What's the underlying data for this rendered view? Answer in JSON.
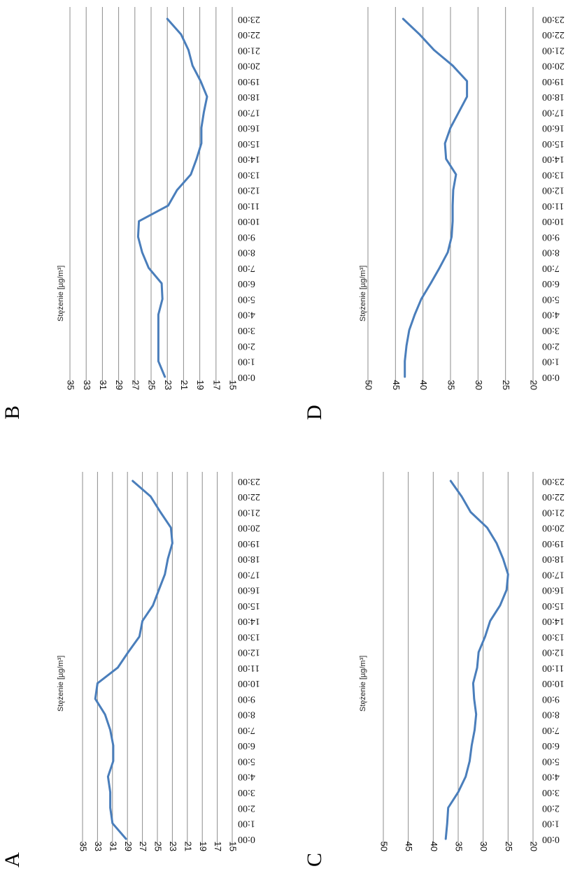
{
  "series_color": "#4a7ebb",
  "chart_data": [
    {
      "panel": "A",
      "type": "line",
      "ylabel": "Stężenie [µg/m³]",
      "ylim": [
        15,
        35
      ],
      "yticks": [
        35,
        33,
        31,
        29,
        27,
        25,
        23,
        21,
        19,
        17,
        15
      ],
      "grid": true,
      "categories": [
        "0:00",
        "1:00",
        "2:00",
        "3:00",
        "4:00",
        "5:00",
        "6:00",
        "7:00",
        "8:00",
        "9:00",
        "10:00",
        "11:00",
        "12:00",
        "13:00",
        "14:00",
        "15:00",
        "16:00",
        "17:00",
        "18:00",
        "19:00",
        "20:00",
        "21:00",
        "22:00",
        "23:00"
      ],
      "values": [
        29.2,
        31.0,
        31.3,
        31.3,
        31.6,
        30.9,
        30.9,
        31.3,
        32.0,
        33.3,
        33.0,
        30.3,
        28.9,
        27.4,
        27.0,
        25.6,
        24.8,
        24.0,
        23.6,
        23.0,
        23.2,
        24.6,
        25.9,
        28.3
      ]
    },
    {
      "panel": "B",
      "type": "line",
      "ylabel": "Stężenie [µg/m³]",
      "ylim": [
        15,
        35
      ],
      "yticks": [
        35,
        33,
        31,
        29,
        27,
        25,
        23,
        21,
        19,
        17,
        15
      ],
      "grid": true,
      "categories": [
        "0:00",
        "1:00",
        "2:00",
        "3:00",
        "4:00",
        "5:00",
        "6:00",
        "7:00",
        "8:00",
        "9:00",
        "10:00",
        "11:00",
        "12:00",
        "13:00",
        "14:00",
        "15:00",
        "16:00",
        "17:00",
        "18:00",
        "19:00",
        "20:00",
        "21:00",
        "22:00",
        "23:00"
      ],
      "values": [
        23.3,
        24.1,
        24.1,
        24.1,
        24.1,
        23.6,
        23.7,
        25.3,
        26.1,
        26.6,
        26.5,
        22.9,
        21.8,
        20.1,
        19.4,
        18.8,
        18.8,
        18.5,
        18.1,
        18.9,
        19.9,
        20.4,
        21.3,
        23.0
      ]
    },
    {
      "panel": "C",
      "type": "line",
      "ylabel": "Stężenie [µg/m³]",
      "ylim": [
        20,
        50
      ],
      "yticks": [
        50,
        45,
        40,
        35,
        30,
        25,
        20
      ],
      "grid": true,
      "categories": [
        "0:00",
        "1:00",
        "2:00",
        "3:00",
        "4:00",
        "5:00",
        "6:00",
        "7:00",
        "8:00",
        "9:00",
        "10:00",
        "11:00",
        "12:00",
        "13:00",
        "14:00",
        "15:00",
        "16:00",
        "17:00",
        "18:00",
        "19:00",
        "20:00",
        "21:00",
        "22:00",
        "23:00"
      ],
      "values": [
        37.5,
        37.2,
        37.0,
        35.0,
        33.5,
        32.7,
        32.3,
        31.7,
        31.4,
        31.8,
        32.0,
        31.2,
        30.9,
        29.6,
        28.6,
        26.6,
        25.3,
        25.0,
        26.0,
        27.3,
        29.2,
        32.5,
        34.3,
        36.5
      ]
    },
    {
      "panel": "D",
      "type": "line",
      "ylabel": "Stężenie [µg/m³]",
      "ylim": [
        20,
        50
      ],
      "yticks": [
        50,
        45,
        40,
        35,
        30,
        25,
        20
      ],
      "grid": true,
      "categories": [
        "0:00",
        "1:00",
        "2:00",
        "3:00",
        "4:00",
        "5:00",
        "6:00",
        "7:00",
        "8:00",
        "9:00",
        "10:00",
        "11:00",
        "12:00",
        "13:00",
        "14:00",
        "15:00",
        "16:00",
        "17:00",
        "18:00",
        "19:00",
        "20:00",
        "21:00",
        "22:00",
        "23:00"
      ],
      "values": [
        43.3,
        43.3,
        43.0,
        42.5,
        41.5,
        40.3,
        38.6,
        37.0,
        35.5,
        34.8,
        34.6,
        34.6,
        34.5,
        34.0,
        35.8,
        36.0,
        35.0,
        33.5,
        32.0,
        32.0,
        34.6,
        38.0,
        40.6,
        43.6
      ]
    }
  ]
}
